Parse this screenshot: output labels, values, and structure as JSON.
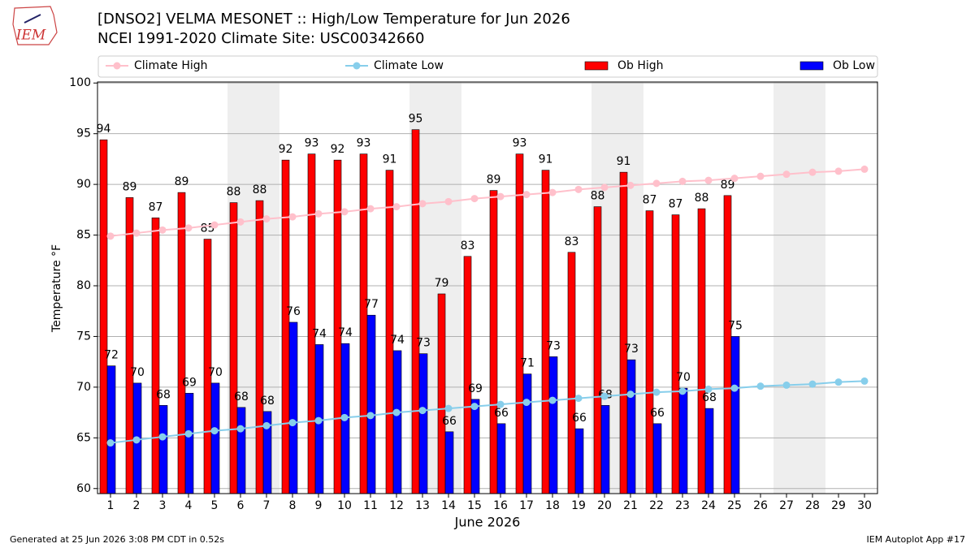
{
  "header": {
    "logo_text": "IEM"
  },
  "chart_data": {
    "type": "bar",
    "title": "[DNSO2] VELMA MESONET :: High/Low Temperature for Jun 2026",
    "subtitle": "NCEI 1991-2020 Climate Site: USC00342660",
    "xlabel": "June 2026",
    "ylabel": "Temperature °F",
    "x": [
      1,
      2,
      3,
      4,
      5,
      6,
      7,
      8,
      9,
      10,
      11,
      12,
      13,
      14,
      15,
      16,
      17,
      18,
      19,
      20,
      21,
      22,
      23,
      24,
      25,
      26,
      27,
      28,
      29,
      30
    ],
    "xlim": [
      0.5,
      30.5
    ],
    "xticks": [
      1,
      2,
      3,
      4,
      5,
      6,
      7,
      8,
      9,
      10,
      11,
      12,
      13,
      14,
      15,
      16,
      17,
      18,
      19,
      20,
      21,
      22,
      23,
      24,
      25,
      26,
      27,
      28,
      29,
      30
    ],
    "ylim": [
      59.5,
      100.1
    ],
    "yticks": [
      60,
      65,
      70,
      75,
      80,
      85,
      90,
      95,
      100
    ],
    "grid": true,
    "shaded_spans": [
      [
        5.5,
        7.5
      ],
      [
        12.5,
        14.5
      ],
      [
        19.5,
        21.5
      ],
      [
        26.5,
        28.5
      ]
    ],
    "shade_color": "#eeeeee",
    "series": [
      {
        "name": "Climate High",
        "type": "line",
        "color": "#ffc0cb",
        "values": [
          84.9,
          85.2,
          85.5,
          85.7,
          86.0,
          86.3,
          86.6,
          86.8,
          87.1,
          87.3,
          87.6,
          87.8,
          88.1,
          88.3,
          88.6,
          88.8,
          89.0,
          89.2,
          89.5,
          89.7,
          89.9,
          90.1,
          90.3,
          90.4,
          90.6,
          90.8,
          91.0,
          91.2,
          91.3,
          91.5
        ]
      },
      {
        "name": "Climate Low",
        "type": "line",
        "color": "#87ceeb",
        "values": [
          64.5,
          64.8,
          65.1,
          65.4,
          65.7,
          65.9,
          66.2,
          66.5,
          66.7,
          67.0,
          67.2,
          67.5,
          67.7,
          67.9,
          68.1,
          68.3,
          68.5,
          68.7,
          68.9,
          69.1,
          69.3,
          69.5,
          69.6,
          69.8,
          69.9,
          70.1,
          70.2,
          70.3,
          70.5,
          70.6
        ]
      },
      {
        "name": "Ob High",
        "type": "bar",
        "color": "#ff0000",
        "values": [
          94.4,
          88.7,
          86.7,
          89.2,
          84.6,
          88.2,
          88.4,
          92.4,
          93.0,
          92.4,
          93.0,
          91.4,
          95.4,
          79.2,
          82.9,
          89.4,
          93.0,
          91.4,
          83.3,
          87.8,
          91.2,
          87.4,
          87.0,
          87.6,
          88.9,
          null,
          null,
          null,
          null,
          null
        ],
        "value_labels": [
          "94",
          "89",
          "87",
          "89",
          "85",
          "88",
          "88",
          "92",
          "93",
          "92",
          "93",
          "91",
          "95",
          "79",
          "83",
          "89",
          "93",
          "91",
          "83",
          "88",
          "91",
          "87",
          "87",
          "88",
          "89",
          null,
          null,
          null,
          null,
          null
        ]
      },
      {
        "name": "Ob Low",
        "type": "bar",
        "color": "#0000ff",
        "values": [
          72.1,
          70.4,
          68.2,
          69.4,
          70.4,
          68.0,
          67.6,
          76.4,
          74.2,
          74.3,
          77.1,
          73.6,
          73.3,
          65.6,
          68.8,
          66.4,
          71.3,
          73.0,
          65.9,
          68.2,
          72.7,
          66.4,
          69.9,
          67.9,
          75.0,
          null,
          null,
          null,
          null,
          null
        ],
        "value_labels": [
          "72",
          "70",
          "68",
          "69",
          "70",
          "68",
          "68",
          "76",
          "74",
          "74",
          "77",
          "74",
          "73",
          "66",
          "69",
          "66",
          "71",
          "73",
          "66",
          "68",
          "73",
          "66",
          "70",
          "68",
          "75",
          null,
          null,
          null,
          null,
          null
        ]
      }
    ],
    "footer_left": "Generated at 25 Jun 2026 3:08 PM CDT in 0.52s",
    "footer_right": "IEM Autoplot App #17"
  }
}
